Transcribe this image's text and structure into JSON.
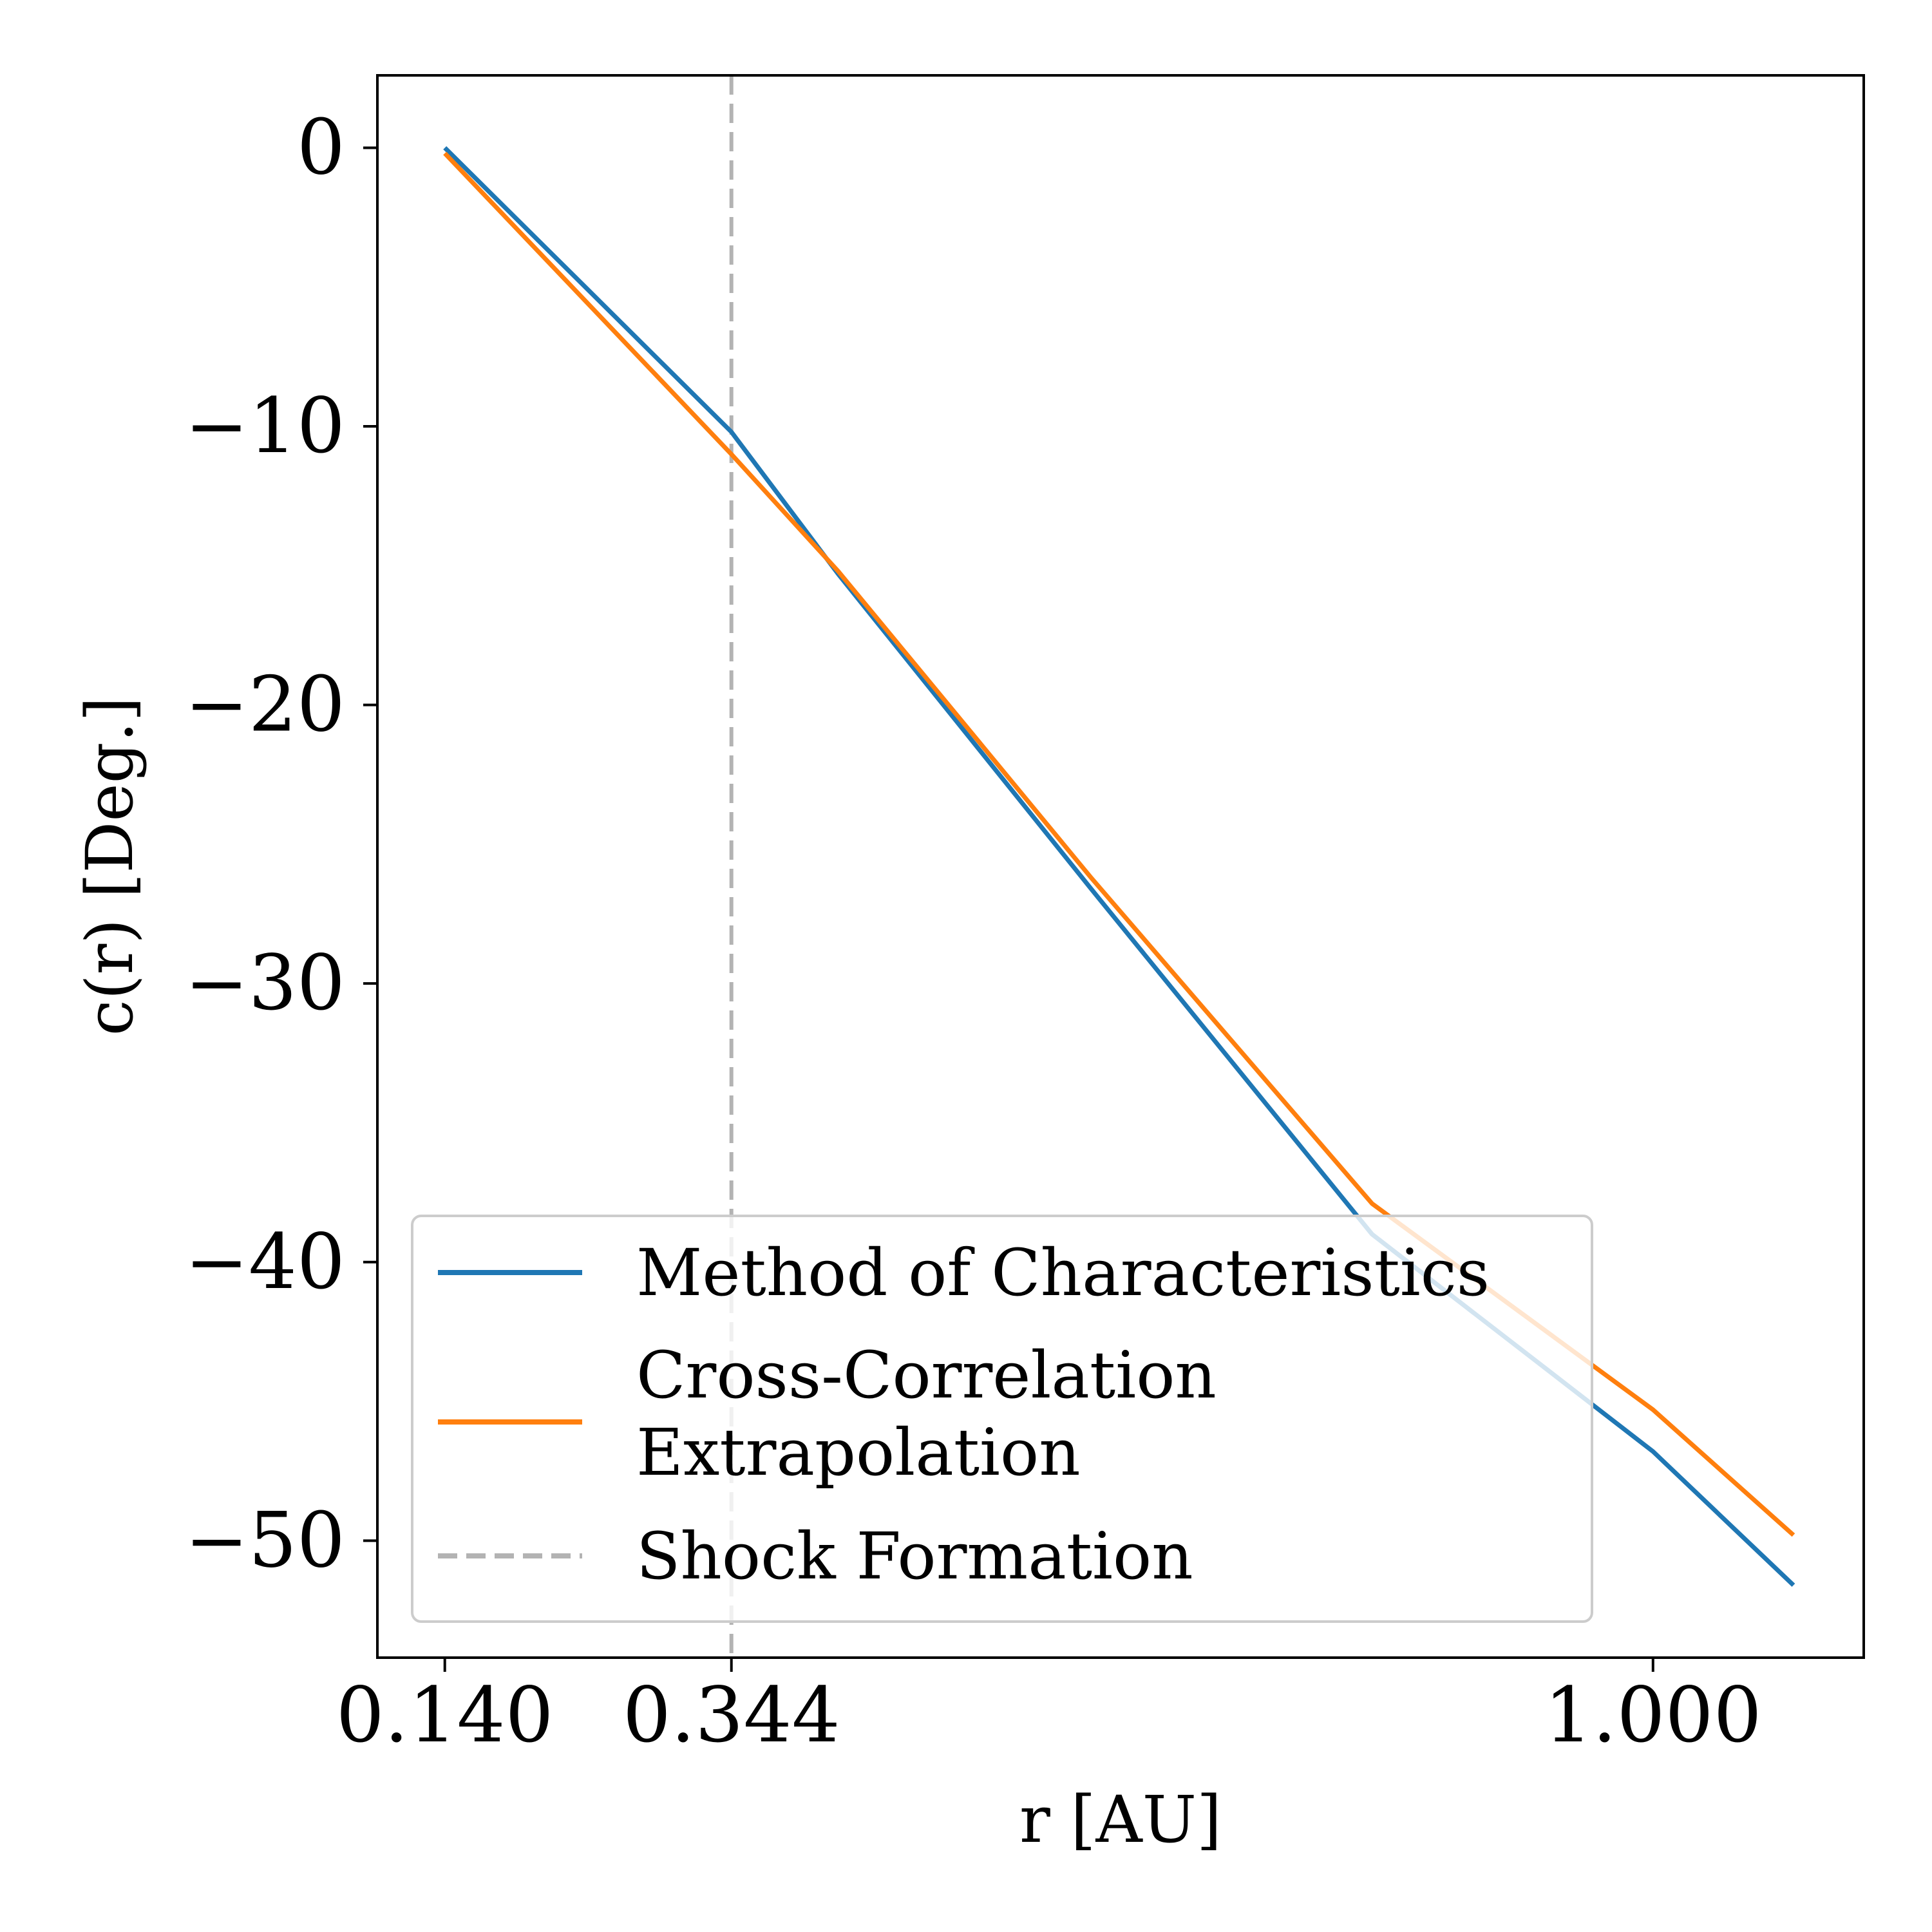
{
  "chart_data": {
    "type": "line",
    "title": "",
    "xlabel": "r [AU]",
    "ylabel": "c(r) [Deg.]",
    "xlim": [
      0.092,
      1.15
    ],
    "ylim": [
      -54.2,
      2.6
    ],
    "x_ticks": [
      {
        "value": 0.14,
        "label": "0.140"
      },
      {
        "value": 0.344,
        "label": "0.344"
      },
      {
        "value": 1.0,
        "label": "1.000"
      }
    ],
    "y_ticks": [
      {
        "value": 0,
        "label": "0"
      },
      {
        "value": -10,
        "label": "−10"
      },
      {
        "value": -20,
        "label": "−20"
      },
      {
        "value": -30,
        "label": "−30"
      },
      {
        "value": -40,
        "label": "−40"
      },
      {
        "value": -50,
        "label": "−50"
      }
    ],
    "grid": false,
    "legend_position": "lower-left",
    "series": [
      {
        "name": "Method of Characteristics",
        "color": "#1f77b4",
        "style": "solid",
        "x": [
          0.14,
          0.344,
          0.42,
          0.6,
          0.8,
          1.0,
          1.1
        ],
        "y": [
          0.0,
          -10.2,
          -15.3,
          -26.6,
          -39.0,
          -46.8,
          -51.6
        ]
      },
      {
        "name": [
          "Cross-Correlation",
          "Extrapolation"
        ],
        "color": "#ff7f0e",
        "style": "solid",
        "x": [
          0.14,
          0.344,
          0.42,
          0.6,
          0.8,
          1.0,
          1.1
        ],
        "y": [
          -0.2,
          -11.0,
          -15.2,
          -26.2,
          -37.9,
          -45.3,
          -49.8
        ]
      }
    ],
    "vlines": [
      {
        "name": "Shock Formation",
        "x": 0.344,
        "color": "#b3b3b3",
        "style": "dashed"
      }
    ]
  }
}
